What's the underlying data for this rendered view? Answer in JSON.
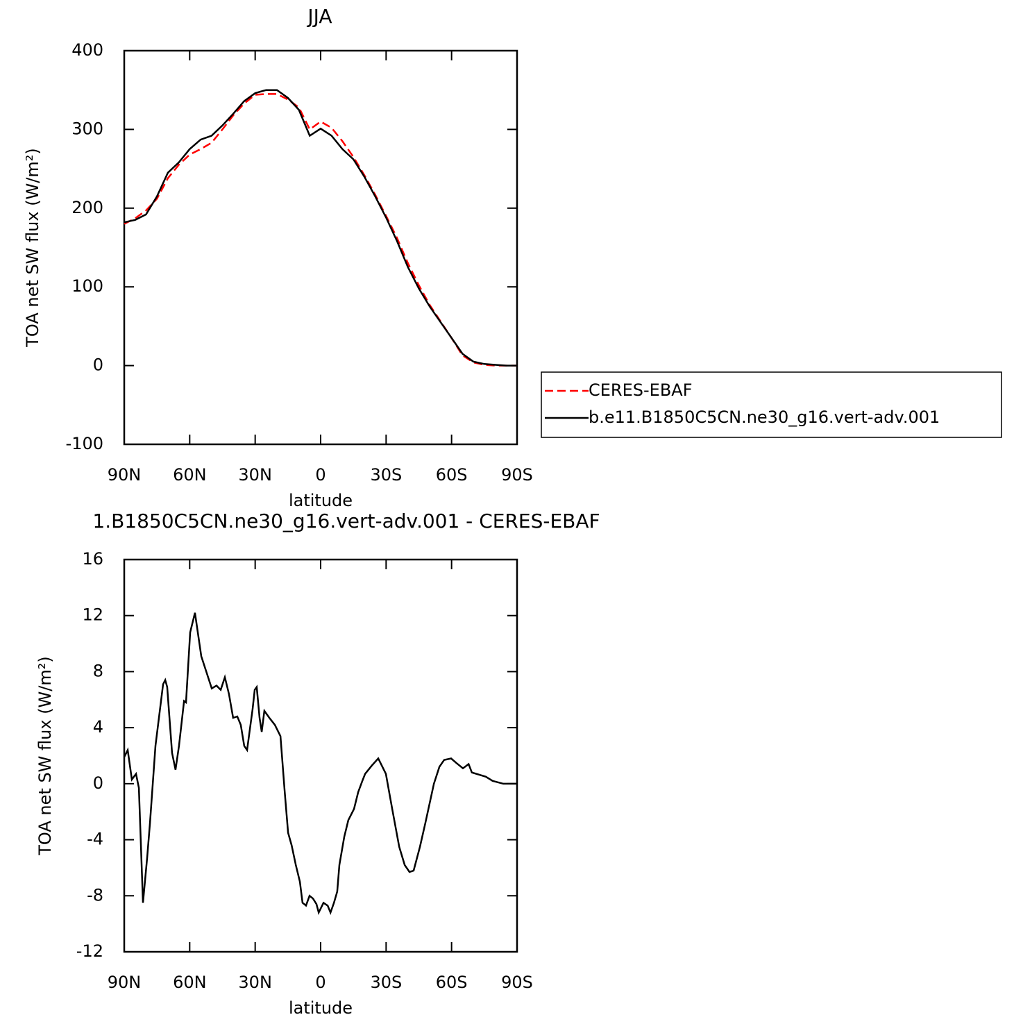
{
  "chart_data": [
    {
      "type": "line",
      "title": "JJA",
      "xlabel": "latitude",
      "ylabel": "TOA net SW flux (W/m²)",
      "x": [
        90,
        85,
        80,
        75,
        70,
        65,
        60,
        55,
        50,
        45,
        40,
        35,
        30,
        25,
        20,
        15,
        10,
        5,
        0,
        -5,
        -10,
        -15,
        -20,
        -25,
        -30,
        -35,
        -40,
        -45,
        -50,
        -55,
        -60,
        -65,
        -70,
        -75,
        -80,
        -85,
        -90
      ],
      "series": [
        {
          "name": "CERES-EBAF",
          "color": "#ff0000",
          "dash": true,
          "values": [
            180,
            187,
            197,
            212,
            238,
            255,
            268,
            275,
            283,
            300,
            318,
            333,
            344,
            345,
            345,
            338,
            328,
            300,
            310,
            302,
            285,
            265,
            242,
            217,
            190,
            162,
            130,
            102,
            77,
            56,
            35,
            13,
            4,
            1,
            0,
            0,
            0
          ]
        },
        {
          "name": "b.e11.B1850C5CN.ne30_g16.vert-adv.001",
          "color": "#000000",
          "dash": false,
          "values": [
            182,
            185,
            192,
            215,
            245,
            258,
            275,
            287,
            292,
            305,
            320,
            336,
            346,
            350,
            350,
            340,
            325,
            292,
            301,
            292,
            275,
            262,
            240,
            215,
            188,
            158,
            125,
            98,
            75,
            55,
            35,
            15,
            5,
            2,
            1,
            0,
            0
          ]
        }
      ],
      "xlim": [
        90,
        -90
      ],
      "xticks": [
        {
          "value": 90,
          "label": "90N"
        },
        {
          "value": 60,
          "label": "60N"
        },
        {
          "value": 30,
          "label": "30N"
        },
        0,
        {
          "value": -30,
          "label": "30S"
        },
        {
          "value": -60,
          "label": "60S"
        },
        {
          "value": -90,
          "label": "90S"
        }
      ],
      "ylim": [
        -100,
        400
      ],
      "yticks": [
        -100,
        0,
        100,
        200,
        300,
        400
      ],
      "legend": "right"
    },
    {
      "type": "line",
      "title": "1.B1850C5CN.ne30_g16.vert-adv.001 - CERES-EBAF",
      "xlabel": "latitude",
      "ylabel": "TOA net SW flux (W/m²)",
      "x": [
        90,
        88.4,
        86.5,
        84.6,
        83.3,
        81.4,
        79.5,
        78.2,
        75.7,
        72.2,
        71.2,
        70.3,
        68.1,
        66.5,
        64.9,
        62.6,
        61.7,
        59.8,
        57.6,
        54.7,
        49.9,
        47.7,
        45.8,
        43.9,
        42,
        40.1,
        38.2,
        36.6,
        35,
        33.7,
        31.2,
        30.2,
        29.3,
        28,
        27,
        25.8,
        23.5,
        21,
        18.4,
        16.5,
        14.9,
        13.3,
        11.4,
        9.5,
        8.3,
        6.7,
        5.1,
        3.5,
        1.9,
        0.9,
        -1.3,
        -3.2,
        -4.5,
        -6.1,
        -7.6,
        -8.6,
        -10.8,
        -12.7,
        -15.3,
        -17.2,
        -19.1,
        -20.4,
        -23.5,
        -26.4,
        -29.9,
        -32.8,
        -36,
        -38.5,
        -40.7,
        -42.6,
        -45.5,
        -48,
        -51.9,
        -54.4,
        -56.6,
        -59.8,
        -62,
        -65.2,
        -67.8,
        -69.3,
        -75.7,
        -78.8,
        -83.7,
        -90
      ],
      "values": [
        1.9,
        2.4,
        0.3,
        0.7,
        -0.3,
        -8.5,
        -5.3,
        -2.8,
        2.7,
        7.1,
        7.4,
        6.9,
        2.2,
        1.0,
        2.7,
        5.9,
        5.8,
        10.8,
        12.2,
        9.1,
        6.8,
        7.0,
        6.7,
        7.6,
        6.4,
        4.7,
        4.8,
        4.2,
        2.7,
        2.4,
        5.3,
        6.7,
        6.9,
        4.7,
        3.7,
        5.2,
        4.7,
        4.2,
        3.4,
        -0.5,
        -3.5,
        -4.4,
        -5.8,
        -7.0,
        -8.5,
        -8.7,
        -8.0,
        -8.2,
        -8.6,
        -9.2,
        -8.5,
        -8.7,
        -9.2,
        -8.5,
        -7.7,
        -5.8,
        -3.8,
        -2.6,
        -1.8,
        -0.6,
        0.2,
        0.7,
        1.3,
        1.8,
        0.7,
        -1.8,
        -4.5,
        -5.8,
        -6.3,
        -6.2,
        -4.5,
        -2.8,
        0,
        1.2,
        1.7,
        1.8,
        1.5,
        1.1,
        1.4,
        0.8,
        0.5,
        0.2,
        0,
        0
      ],
      "color": "#000000",
      "xlim": [
        90,
        -90
      ],
      "xticks": [
        {
          "value": 90,
          "label": "90N"
        },
        {
          "value": 60,
          "label": "60N"
        },
        {
          "value": 30,
          "label": "30N"
        },
        0,
        {
          "value": -30,
          "label": "30S"
        },
        {
          "value": -60,
          "label": "60S"
        },
        {
          "value": -90,
          "label": "90S"
        }
      ],
      "ylim": [
        -12,
        16
      ],
      "yticks": [
        -12,
        -8,
        -4,
        0,
        4,
        8,
        12,
        16
      ]
    }
  ]
}
